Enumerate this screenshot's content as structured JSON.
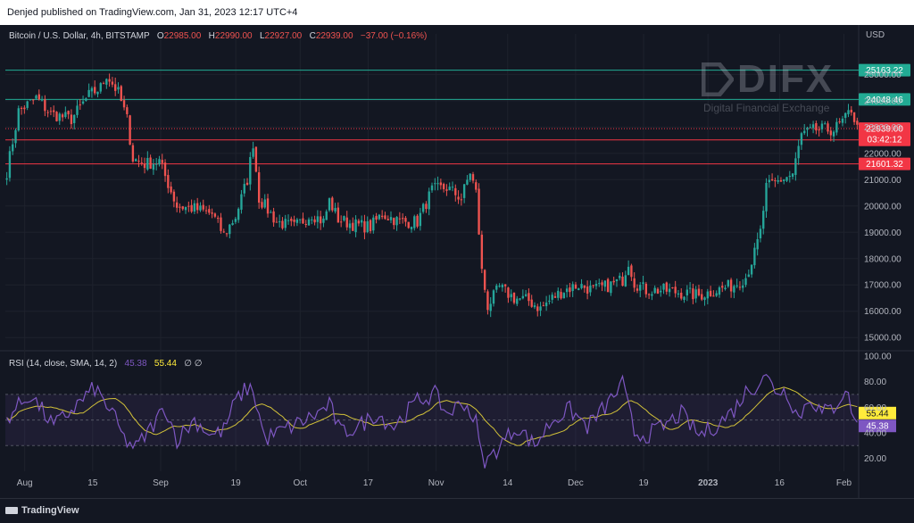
{
  "header": {
    "publish_text": "Denjed published on TradingView.com, Jan 31, 2023 12:17 UTC+4"
  },
  "legend": {
    "symbol": "Bitcoin / U.S. Dollar, 4h, BITSTAMP",
    "o_label": "O",
    "o_value": "22985.00",
    "h_label": "H",
    "h_value": "22990.00",
    "l_label": "L",
    "l_value": "22927.00",
    "c_label": "C",
    "c_value": "22939.00",
    "change": "−37.00 (−0.16%)"
  },
  "rsi_legend": {
    "label": "RSI (14, close, SMA, 14, 2)",
    "rsi_value": "45.38",
    "sma_value": "55.44",
    "extra": "∅ ∅"
  },
  "watermark": {
    "title": "DIFX",
    "subtitle": "Digital Financial Exchange"
  },
  "footer": {
    "brand": "TradingView"
  },
  "colors": {
    "background": "#131722",
    "up": "#26a69a",
    "down": "#ef5350",
    "rsi": "#7e57c2",
    "rsi_sma": "#ffeb3b",
    "level_green": "#22ab94",
    "level_red": "#f23645"
  },
  "chart_data": [
    {
      "type": "candlestick",
      "title": "Bitcoin / U.S. Dollar, 4h, BITSTAMP",
      "currency_label": "USD",
      "x_ticks": [
        "Aug",
        "15",
        "Sep",
        "19",
        "Oct",
        "17",
        "Nov",
        "14",
        "Dec",
        "19",
        "2023",
        "16",
        "Feb"
      ],
      "y_ticks": [
        "25000.00",
        "24000.00",
        "23000.00",
        "22000.00",
        "21000.00",
        "20000.00",
        "19000.00",
        "18000.00",
        "17000.00",
        "16000.00",
        "15000.00"
      ],
      "y_tick_values": [
        25000,
        24000,
        23000,
        22000,
        21000,
        20000,
        19000,
        18000,
        17000,
        16000,
        15000
      ],
      "ylim": [
        14600,
        26200
      ],
      "grid": true,
      "horizontal_levels": [
        {
          "value": 25163.22,
          "label": "25163.22",
          "color": "#22ab94"
        },
        {
          "value": 24048.46,
          "label": "24048.46",
          "color": "#22ab94"
        },
        {
          "value": 22511.45,
          "label": "22511.45",
          "color": "#f23645"
        },
        {
          "value": 21601.32,
          "label": "21601.32",
          "color": "#f23645"
        }
      ],
      "last_price": {
        "value": 22939.0,
        "label": "22939.00",
        "countdown": "03:42:12"
      },
      "close_path": [
        [
          0,
          21300
        ],
        [
          4,
          23600
        ],
        [
          10,
          24100
        ],
        [
          15,
          23500
        ],
        [
          22,
          23300
        ],
        [
          28,
          24200
        ],
        [
          32,
          24500
        ],
        [
          34,
          25000
        ],
        [
          38,
          24300
        ],
        [
          41,
          23300
        ],
        [
          43,
          21800
        ],
        [
          47,
          21600
        ],
        [
          52,
          21700
        ],
        [
          58,
          20000
        ],
        [
          64,
          19900
        ],
        [
          70,
          19700
        ],
        [
          74,
          18900
        ],
        [
          78,
          19600
        ],
        [
          82,
          21000
        ],
        [
          84,
          22400
        ],
        [
          86,
          20300
        ],
        [
          92,
          19400
        ],
        [
          98,
          19200
        ],
        [
          104,
          19700
        ],
        [
          108,
          19400
        ],
        [
          110,
          20200
        ],
        [
          113,
          19500
        ],
        [
          118,
          19300
        ],
        [
          124,
          19200
        ],
        [
          128,
          19700
        ],
        [
          134,
          19400
        ],
        [
          140,
          19400
        ],
        [
          145,
          20600
        ],
        [
          150,
          20700
        ],
        [
          155,
          20300
        ],
        [
          158,
          21300
        ],
        [
          160,
          20500
        ],
        [
          162,
          17500
        ],
        [
          164,
          16200
        ],
        [
          168,
          16900
        ],
        [
          173,
          16500
        ],
        [
          178,
          16400
        ],
        [
          182,
          16100
        ],
        [
          186,
          16500
        ],
        [
          190,
          16800
        ],
        [
          195,
          17000
        ],
        [
          200,
          16800
        ],
        [
          206,
          17000
        ],
        [
          210,
          17200
        ],
        [
          212,
          17900
        ],
        [
          214,
          17100
        ],
        [
          218,
          16800
        ],
        [
          224,
          16800
        ],
        [
          230,
          16700
        ],
        [
          236,
          16600
        ],
        [
          242,
          16800
        ],
        [
          248,
          17000
        ],
        [
          252,
          17300
        ],
        [
          255,
          18200
        ],
        [
          257,
          19000
        ],
        [
          259,
          20700
        ],
        [
          264,
          21000
        ],
        [
          268,
          21200
        ],
        [
          271,
          22700
        ],
        [
          276,
          22900
        ],
        [
          282,
          22900
        ],
        [
          286,
          23300
        ],
        [
          288,
          23700
        ],
        [
          290,
          22939
        ]
      ]
    },
    {
      "type": "line",
      "title": "RSI (14, close, SMA, 14, 2)",
      "series": [
        {
          "name": "RSI",
          "color": "#7e57c2",
          "last": 45.38
        },
        {
          "name": "SMA",
          "color": "#ffeb3b",
          "last": 55.44
        }
      ],
      "y_ticks": [
        "100.00",
        "80.00",
        "60.00",
        "40.00",
        "20.00"
      ],
      "y_tick_values": [
        100,
        80,
        60,
        40,
        20
      ],
      "ylim": [
        10,
        102
      ],
      "bands": {
        "upper": 70,
        "middle": 50,
        "lower": 30
      },
      "rsi_path": [
        [
          0,
          52
        ],
        [
          8,
          70
        ],
        [
          16,
          45
        ],
        [
          24,
          62
        ],
        [
          30,
          75
        ],
        [
          36,
          55
        ],
        [
          40,
          35
        ],
        [
          44,
          28
        ],
        [
          48,
          40
        ],
        [
          54,
          60
        ],
        [
          58,
          35
        ],
        [
          64,
          50
        ],
        [
          70,
          38
        ],
        [
          74,
          42
        ],
        [
          78,
          65
        ],
        [
          82,
          75
        ],
        [
          84,
          73
        ],
        [
          88,
          35
        ],
        [
          94,
          42
        ],
        [
          100,
          48
        ],
        [
          106,
          55
        ],
        [
          110,
          62
        ],
        [
          114,
          40
        ],
        [
          120,
          45
        ],
        [
          126,
          55
        ],
        [
          132,
          45
        ],
        [
          140,
          65
        ],
        [
          146,
          70
        ],
        [
          150,
          55
        ],
        [
          156,
          64
        ],
        [
          160,
          48
        ],
        [
          162,
          20
        ],
        [
          164,
          18
        ],
        [
          168,
          30
        ],
        [
          174,
          45
        ],
        [
          180,
          30
        ],
        [
          186,
          50
        ],
        [
          192,
          58
        ],
        [
          198,
          45
        ],
        [
          204,
          60
        ],
        [
          210,
          78
        ],
        [
          214,
          40
        ],
        [
          218,
          38
        ],
        [
          224,
          45
        ],
        [
          230,
          55
        ],
        [
          236,
          38
        ],
        [
          242,
          46
        ],
        [
          248,
          58
        ],
        [
          252,
          72
        ],
        [
          256,
          78
        ],
        [
          258,
          86
        ],
        [
          262,
          74
        ],
        [
          266,
          72
        ],
        [
          270,
          52
        ],
        [
          274,
          68
        ],
        [
          278,
          55
        ],
        [
          282,
          60
        ],
        [
          286,
          74
        ],
        [
          290,
          45.38
        ]
      ],
      "x_ticks": [
        "Aug",
        "15",
        "Sep",
        "19",
        "Oct",
        "17",
        "Nov",
        "14",
        "Dec",
        "19",
        "2023",
        "16",
        "Feb"
      ]
    }
  ]
}
